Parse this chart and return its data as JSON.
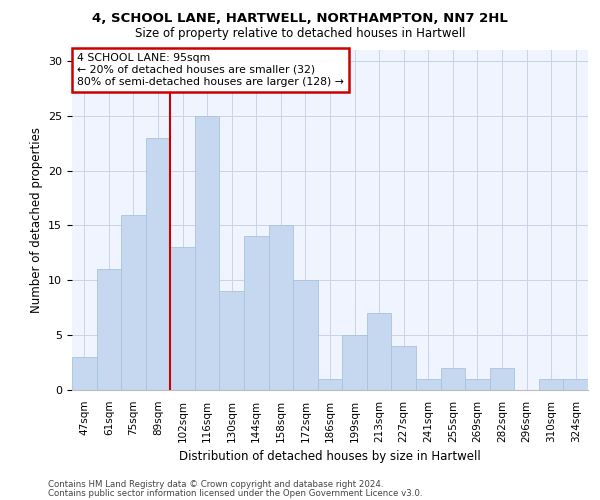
{
  "title1": "4, SCHOOL LANE, HARTWELL, NORTHAMPTON, NN7 2HL",
  "title2": "Size of property relative to detached houses in Hartwell",
  "xlabel": "Distribution of detached houses by size in Hartwell",
  "ylabel": "Number of detached properties",
  "categories": [
    "47sqm",
    "61sqm",
    "75sqm",
    "89sqm",
    "102sqm",
    "116sqm",
    "130sqm",
    "144sqm",
    "158sqm",
    "172sqm",
    "186sqm",
    "199sqm",
    "213sqm",
    "227sqm",
    "241sqm",
    "255sqm",
    "269sqm",
    "282sqm",
    "296sqm",
    "310sqm",
    "324sqm"
  ],
  "values": [
    3,
    11,
    16,
    23,
    13,
    25,
    9,
    14,
    15,
    10,
    1,
    5,
    7,
    4,
    1,
    2,
    1,
    2,
    0,
    1,
    1
  ],
  "bar_color": "#c5d8f0",
  "bar_edge_color": "#a8c4e0",
  "annotation_line1": "4 SCHOOL LANE: 95sqm",
  "annotation_line2": "← 20% of detached houses are smaller (32)",
  "annotation_line3": "80% of semi-detached houses are larger (128) →",
  "annotation_box_color": "white",
  "annotation_box_edge": "#cc0000",
  "vline_color": "#cc0000",
  "vline_x_index": 3.5,
  "ylim": [
    0,
    31
  ],
  "yticks": [
    0,
    5,
    10,
    15,
    20,
    25,
    30
  ],
  "footer1": "Contains HM Land Registry data © Crown copyright and database right 2024.",
  "footer2": "Contains public sector information licensed under the Open Government Licence v3.0.",
  "bg_color": "#f0f4ff",
  "grid_color": "#c8d4e8"
}
